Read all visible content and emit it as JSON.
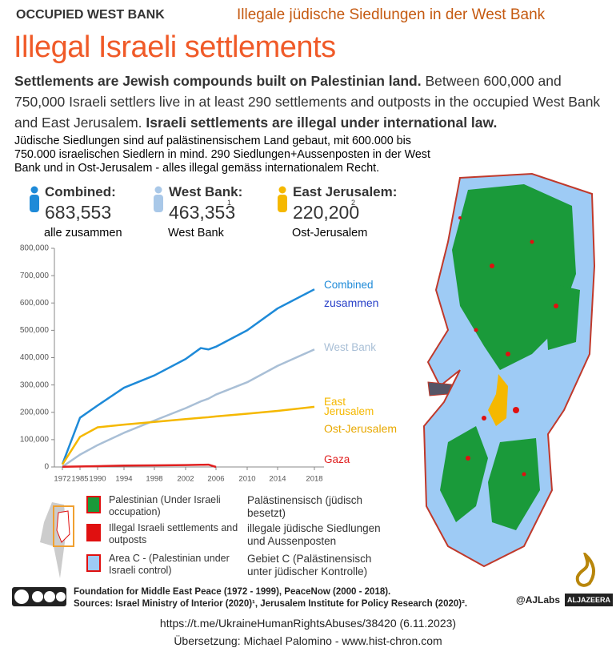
{
  "header": {
    "kicker": "OCCUPIED WEST BANK",
    "translation_title": "Illegale jüdische Siedlungen in der West Bank",
    "title": "Illegal Israeli settlements",
    "lead_bold": "Settlements are Jewish compounds built on Palestinian land.",
    "lead": "Between 600,000 and 750,000 Israeli settlers live in at least 290 settlements and outposts in the occupied West Bank and East Jerusalem.",
    "lead_bold2": "Israeli settlements are illegal under international law.",
    "translation_lead": "Jüdische Siedlungen sind auf palästinensischem Land gebaut, mit 600.000 bis 750.000 israelischen Siedlern in mind. 290 Siedlungen+Aussenposten in der West Bank und in Ost-Jerusalem - alles illegal gemäss internationalem Recht."
  },
  "stats": [
    {
      "label": "Combined:",
      "value": "683,553",
      "translation": "alle zusammen",
      "color": "#1e8ad8"
    },
    {
      "label": "West Bank:",
      "value": "463,353",
      "note": "1",
      "translation": "West Bank",
      "color": "#a9c8e8"
    },
    {
      "label": "East Jerusalem:",
      "value": "220,200",
      "note": "2",
      "translation": "Ost-Jerusalem",
      "color": "#f5b800"
    }
  ],
  "chart_data": {
    "type": "line",
    "x": [
      1972,
      1985,
      1990,
      1994,
      1998,
      2002,
      2004,
      2005,
      2006,
      2010,
      2014,
      2018
    ],
    "xlim": [
      1972,
      2018
    ],
    "xticks": [
      1972,
      1985,
      1990,
      1994,
      1998,
      2002,
      2006,
      2010,
      2014,
      2018
    ],
    "ylim": [
      0,
      800000
    ],
    "yticks": [
      {
        "value": 0,
        "label": "0"
      },
      {
        "value": 100000,
        "label": "100,000"
      },
      {
        "value": 200000,
        "label": "200,000"
      },
      {
        "value": 300000,
        "label": "300,000"
      },
      {
        "value": 400000,
        "label": "400,000"
      },
      {
        "value": 500000,
        "label": "500,000"
      },
      {
        "value": 600000,
        "label": "600,000"
      },
      {
        "value": 700000,
        "label": "700,000"
      },
      {
        "value": 800000,
        "label": "800,000"
      }
    ],
    "grid": false,
    "series": [
      {
        "name": "Combined",
        "translation": "zusammen",
        "color": "#1e8ad8",
        "values": [
          10000,
          180000,
          225000,
          290000,
          335000,
          395000,
          435000,
          430000,
          440000,
          500000,
          580000,
          650000
        ]
      },
      {
        "name": "West Bank",
        "color": "#a9bfd6",
        "values": [
          1000,
          45000,
          80000,
          125000,
          170000,
          215000,
          240000,
          250000,
          265000,
          310000,
          370000,
          430000
        ]
      },
      {
        "name": "East Jerusalem",
        "translation": "Ost-Jerusalem",
        "color": "#f5b800",
        "values": [
          9000,
          110000,
          145000,
          155000,
          165000,
          175000,
          180000,
          182000,
          185000,
          195000,
          205000,
          220000
        ]
      },
      {
        "name": "Gaza",
        "color": "#e02020",
        "values": [
          700,
          2000,
          3000,
          5000,
          6000,
          7000,
          8000,
          8500,
          0,
          null,
          null,
          null
        ]
      }
    ]
  },
  "legend": [
    {
      "label": "Palestinian (Under Israeli occupation)",
      "translation": "Palästinensisch (jüdisch besetzt)",
      "color": "#1a9a3a"
    },
    {
      "label": "Illegal Israeli settlements and outposts",
      "translation": "illegale jüdische Siedlungen und Aussenposten",
      "color": "#e01010"
    },
    {
      "label": "Area C - (Palestinian under Israeli control)",
      "translation": "Gebiet C (Palästinensisch unter jüdischer Kontrolle)",
      "color": "#9ecbf5"
    }
  ],
  "footer": {
    "sources_1": "Foundation for Middle East Peace (1972 - 1999), PeaceNow (2000 - 2018).",
    "sources_2": "Sources: Israel Ministry of Interior (2020)¹, Jerusalem Institute for Policy Research (2020)².",
    "handle": "@AJLabs",
    "brand": "ALJAZEERA",
    "url": "https://t.me/UkraineHumanRightsAbuses/38420 (6.11.2023)",
    "translator": "Übersetzung: Michael Palomino - www.hist-chron.com"
  }
}
